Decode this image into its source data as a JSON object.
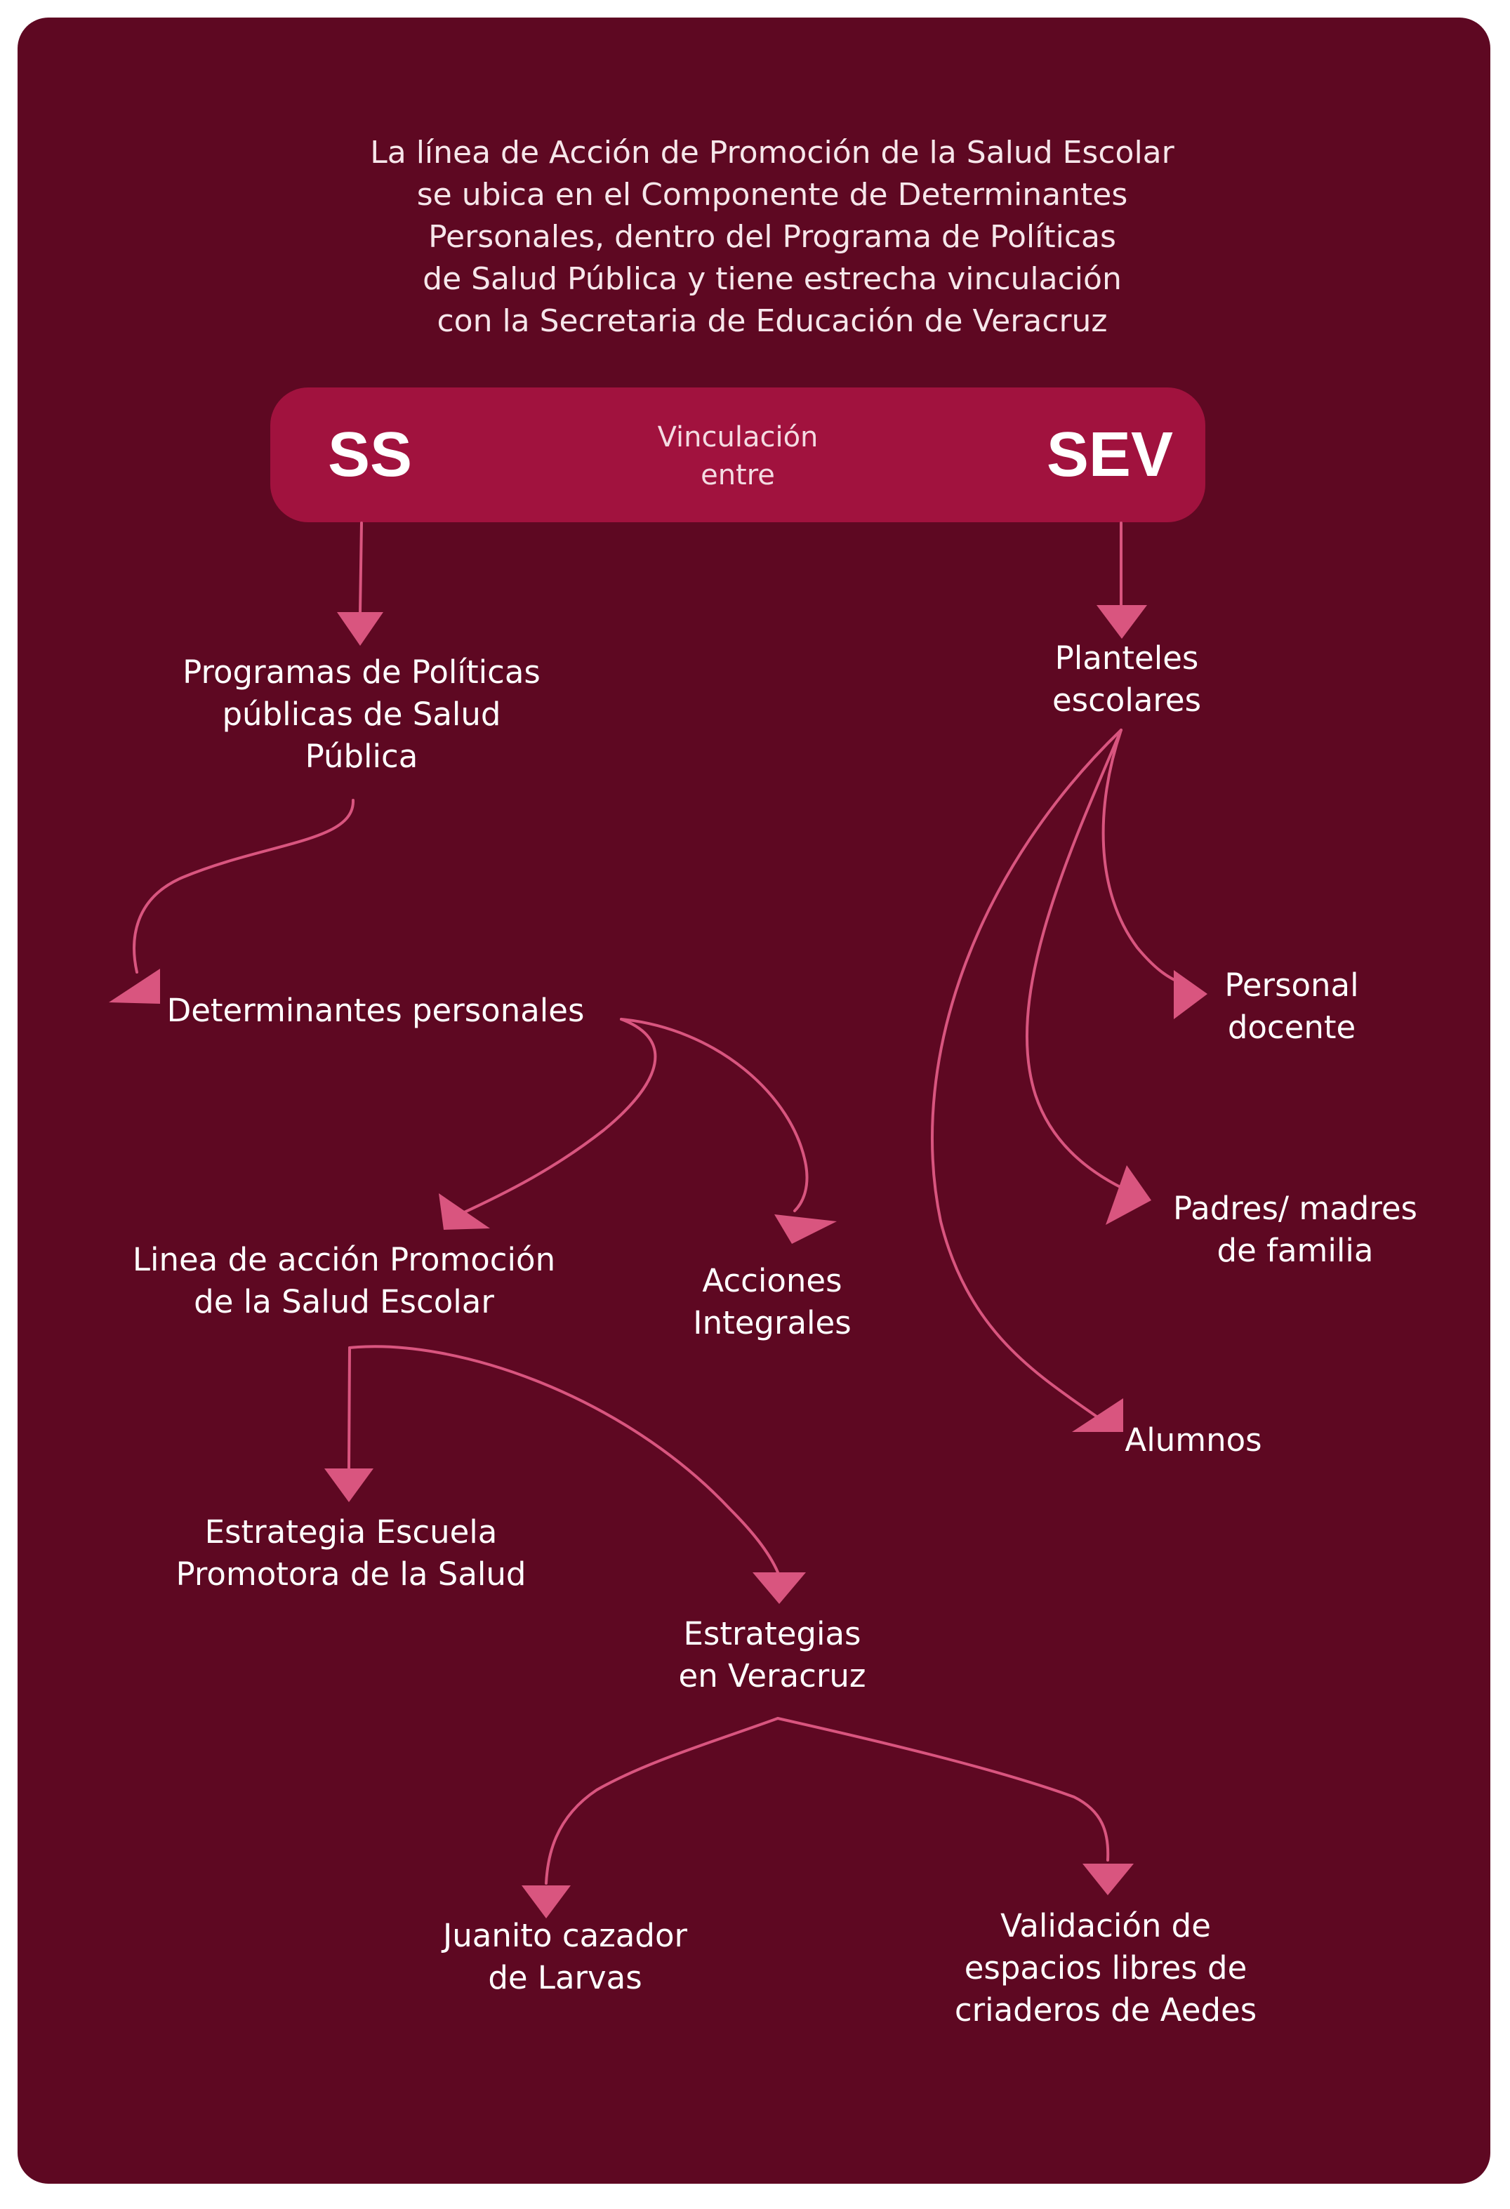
{
  "colors": {
    "background": "#5e0822",
    "pill": "#a1123e",
    "connector": "#d9557f",
    "text": "#ffffff"
  },
  "intro": "La línea de Acción de Promoción de la Salud Escolar\nse ubica en el Componente de Determinantes\nPersonales, dentro del Programa de Políticas\nde Salud Pública y tiene estrecha vinculación\ncon la Secretaria de Educación de Veracruz",
  "header": {
    "left": "SS",
    "middle": "Vinculación\nentre",
    "right": "SEV"
  },
  "nodes": {
    "programas": "Programas de Políticas\npúblicas de Salud\nPública",
    "determinantes": "Determinantes personales",
    "linea": "Linea de acción Promoción\nde la Salud Escolar",
    "acciones": "Acciones\nIntegrales",
    "escuela": "Estrategia Escuela\nPromotora de la Salud",
    "estrategias": "Estrategias\nen Veracruz",
    "juanito": "Juanito cazador\nde Larvas",
    "validacion": "Validación de\nespacios libres de\ncriaderos de Aedes",
    "planteles": "Planteles\nescolares",
    "personal": "Personal\ndocente",
    "padres": "Padres/ madres\nde familia",
    "alumnos": "Alumnos"
  },
  "edges": [
    [
      "header.left",
      "programas"
    ],
    [
      "programas",
      "determinantes"
    ],
    [
      "determinantes",
      "linea"
    ],
    [
      "determinantes",
      "acciones"
    ],
    [
      "linea",
      "escuela"
    ],
    [
      "linea",
      "estrategias"
    ],
    [
      "estrategias",
      "juanito"
    ],
    [
      "estrategias",
      "validacion"
    ],
    [
      "header.right",
      "planteles"
    ],
    [
      "planteles",
      "personal"
    ],
    [
      "planteles",
      "padres"
    ],
    [
      "planteles",
      "alumnos"
    ]
  ]
}
